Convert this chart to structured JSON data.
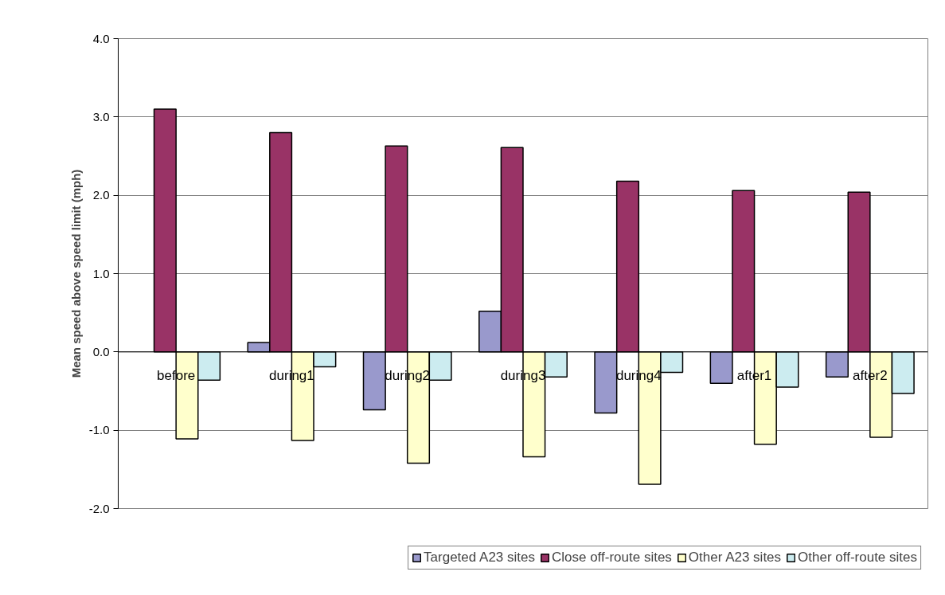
{
  "chart_data": {
    "type": "bar",
    "ylabel": "Mean speed above speed limit (mph)",
    "categories": [
      "before",
      "during1",
      "during2",
      "during3",
      "during4",
      "after1",
      "after2"
    ],
    "series": [
      {
        "name": "Targeted A23 sites",
        "color": "#9999cc",
        "values": [
          null,
          0.12,
          -0.74,
          0.52,
          -0.78,
          -0.4,
          -0.32
        ]
      },
      {
        "name": "Close off-route sites",
        "color": "#993366",
        "values": [
          3.1,
          2.8,
          2.63,
          2.61,
          2.18,
          2.06,
          2.04
        ]
      },
      {
        "name": "Other A23 sites",
        "color": "#ffffcc",
        "values": [
          -1.11,
          -1.13,
          -1.42,
          -1.34,
          -1.69,
          -1.18,
          -1.09
        ]
      },
      {
        "name": "Other off-route sites",
        "color": "#ccecf0",
        "values": [
          -0.36,
          -0.19,
          -0.36,
          -0.32,
          -0.26,
          -0.45,
          -0.53
        ]
      }
    ],
    "ylim": [
      -2.0,
      4.0
    ],
    "yticks": [
      {
        "value": -2,
        "label": "-2.0"
      },
      {
        "value": -1,
        "label": "-1.0"
      },
      {
        "value": 0,
        "label": "0.0"
      },
      {
        "value": 1,
        "label": "1.0"
      },
      {
        "value": 2,
        "label": "2.0"
      },
      {
        "value": 3,
        "label": "3.0"
      },
      {
        "value": 4,
        "label": "4.0"
      }
    ],
    "grid": "y",
    "legend": "bottom"
  }
}
